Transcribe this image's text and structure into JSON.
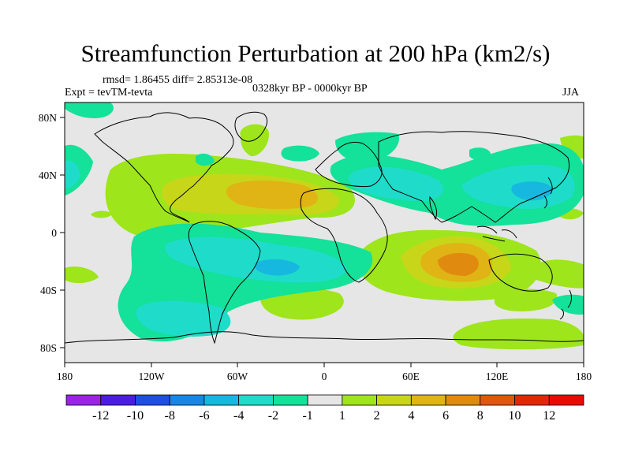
{
  "title": "Streamfunction Perturbation at 200 hPa (km2/s)",
  "stats_line": "rmsd= 1.86455 diff= 2.85313e-08",
  "left_label": "Expt = tevTM-tevta",
  "center_label": "0328kyr BP - 0000kyr BP",
  "right_label": "JJA",
  "lat_ticks": [
    "80N",
    "40N",
    "0",
    "40S",
    "80S"
  ],
  "lon_ticks": [
    "180",
    "120W",
    "60W",
    "0",
    "60E",
    "120E",
    "180"
  ],
  "colorbar": {
    "labels": [
      "-12",
      "-10",
      "-8",
      "-6",
      "-4",
      "-2",
      "-1",
      "1",
      "2",
      "4",
      "6",
      "8",
      "10",
      "12"
    ],
    "colors": [
      "#9a24e6",
      "#4b1de0",
      "#1f4fe0",
      "#1b86e2",
      "#17b8e0",
      "#1edcc9",
      "#14e19a",
      "#e6e6e6",
      "#9ee51c",
      "#c8d61a",
      "#e0b414",
      "#e08a10",
      "#e0580c",
      "#e02808",
      "#ea0a04"
    ]
  },
  "palette": {
    "zero": "#e6e6e6",
    "neg1": "#14e19a",
    "neg2": "#1edcc9",
    "neg4": "#17b8e0",
    "pos1": "#9ee51c",
    "pos2": "#c8d61a",
    "pos4": "#e0b414",
    "pos6": "#e08a10"
  }
}
